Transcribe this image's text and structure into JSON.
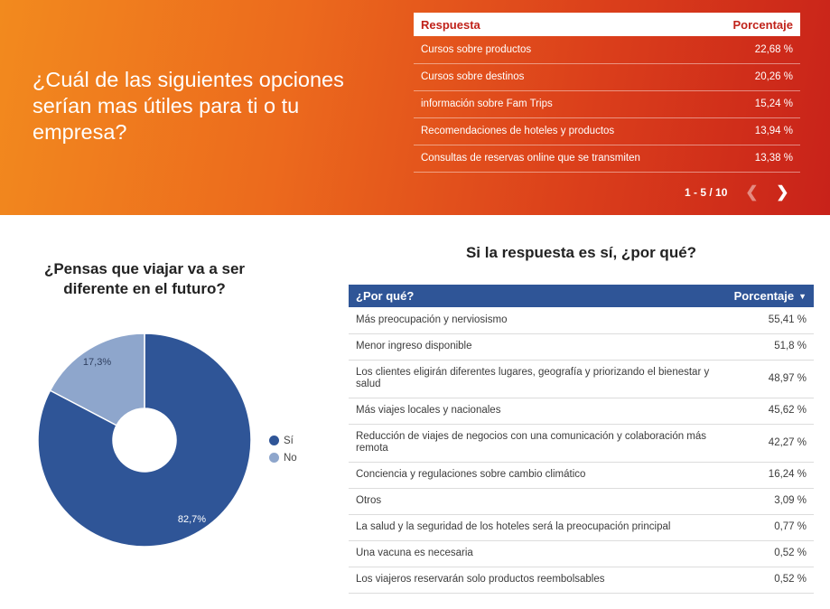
{
  "banner": {
    "question": "¿Cuál de las siguientes opciones serían mas útiles para ti o tu empresa?",
    "table": {
      "col_label": "Respuesta",
      "col_pct": "Porcentaje",
      "rows": [
        {
          "label": "Cursos sobre productos",
          "pct": "22,68 %"
        },
        {
          "label": "Cursos sobre destinos",
          "pct": "20,26 %"
        },
        {
          "label": "información sobre Fam Trips",
          "pct": "15,24 %"
        },
        {
          "label": "Recomendaciones de hoteles y productos",
          "pct": "13,94 %"
        },
        {
          "label": "Consultas de reservas online que se transmiten",
          "pct": "13,38 %"
        }
      ]
    },
    "pager": {
      "range": "1 - 5 / 10",
      "prev_icon": "chevron-left-icon",
      "next_icon": "chevron-right-icon"
    }
  },
  "chart_data": {
    "type": "pie",
    "title": "¿Pensas que viajar va a ser diferente en el futuro?",
    "categories": [
      "Sí",
      "No"
    ],
    "values": [
      82.7,
      17.3
    ],
    "value_labels": [
      "82,7%",
      "17,3%"
    ],
    "colors": [
      "#2f5597",
      "#8ea6cc"
    ],
    "donut": true,
    "legend": "right"
  },
  "why": {
    "title": "Si la respuesta es sí, ¿por qué?",
    "col_label": "¿Por qué?",
    "col_pct": "Porcentaje",
    "sort_icon": "sort-down-icon",
    "rows": [
      {
        "label": "Más preocupación y nerviosismo",
        "pct": "55,41 %"
      },
      {
        "label": "Menor ingreso disponible",
        "pct": "51,8 %"
      },
      {
        "label": "Los clientes eligirán diferentes lugares, geografía y priorizando el bienestar y salud",
        "pct": "48,97 %"
      },
      {
        "label": "Más viajes locales y nacionales",
        "pct": "45,62 %"
      },
      {
        "label": "Reducción de viajes de negocios con una comunicación y colaboración más remota",
        "pct": "42,27 %"
      },
      {
        "label": "Conciencia y regulaciones sobre cambio climático",
        "pct": "16,24 %"
      },
      {
        "label": "Otros",
        "pct": "3,09 %"
      },
      {
        "label": "La salud y la seguridad de los hoteles será la preocupación principal",
        "pct": "0,77 %"
      },
      {
        "label": "Una vacuna es necesaria",
        "pct": "0,52 %"
      },
      {
        "label": "Los viajeros reservarán solo productos reembolsables",
        "pct": "0,52 %"
      }
    ]
  }
}
